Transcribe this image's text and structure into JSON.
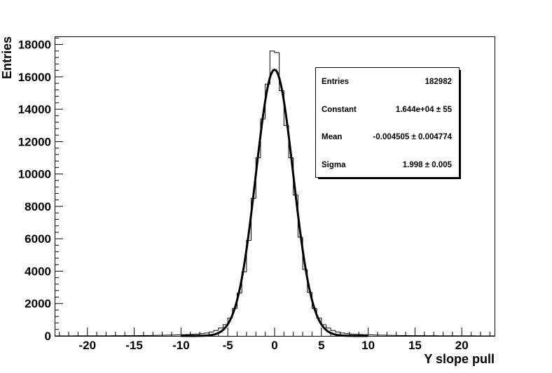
{
  "chart_data": {
    "type": "histogram",
    "xlabel": "Y slope pull",
    "ylabel": "Entries",
    "xlim": [
      -23.5,
      23.5
    ],
    "ylim": [
      0,
      18500
    ],
    "bin_width": 0.5,
    "x_ticks": [
      "-20",
      "-15",
      "-10",
      "-5",
      "0",
      "5",
      "10",
      "15",
      "20"
    ],
    "x_tick_values": [
      -20,
      -15,
      -10,
      -5,
      0,
      5,
      10,
      15,
      20
    ],
    "y_ticks": [
      "0",
      "2000",
      "4000",
      "6000",
      "8000",
      "10000",
      "12000",
      "14000",
      "16000",
      "18000"
    ],
    "y_tick_values": [
      0,
      2000,
      4000,
      6000,
      8000,
      10000,
      12000,
      14000,
      16000,
      18000
    ],
    "histogram_counts_sample": [
      {
        "x": -8.0,
        "count": 120
      },
      {
        "x": -7.0,
        "count": 200
      },
      {
        "x": -6.0,
        "count": 380
      },
      {
        "x": -5.0,
        "count": 800
      },
      {
        "x": -4.0,
        "count": 2000
      },
      {
        "x": -3.0,
        "count": 4600
      },
      {
        "x": -2.0,
        "count": 9800
      },
      {
        "x": -1.0,
        "count": 14600
      },
      {
        "x": -0.5,
        "count": 16500
      },
      {
        "x": 0.0,
        "count": 18700
      },
      {
        "x": 0.5,
        "count": 16300
      },
      {
        "x": 1.0,
        "count": 14000
      },
      {
        "x": 2.0,
        "count": 10000
      },
      {
        "x": 3.0,
        "count": 4800
      },
      {
        "x": 4.0,
        "count": 2000
      },
      {
        "x": 5.0,
        "count": 800
      },
      {
        "x": 6.0,
        "count": 380
      },
      {
        "x": 7.0,
        "count": 200
      },
      {
        "x": 8.0,
        "count": 120
      }
    ],
    "fit": {
      "function": "gaus",
      "constant": 16440,
      "mean": -0.004505,
      "sigma": 1.998
    },
    "stats_box": {
      "rows": [
        {
          "label": "Entries",
          "value": "182982"
        },
        {
          "label": "Constant",
          "value": "1.644e+04 ± 55"
        },
        {
          "label": "Mean",
          "value": "-0.004505 ± 0.004774"
        },
        {
          "label": "Sigma",
          "value": "1.998 ± 0.005"
        }
      ],
      "placement": "top-right"
    },
    "grid": false
  }
}
